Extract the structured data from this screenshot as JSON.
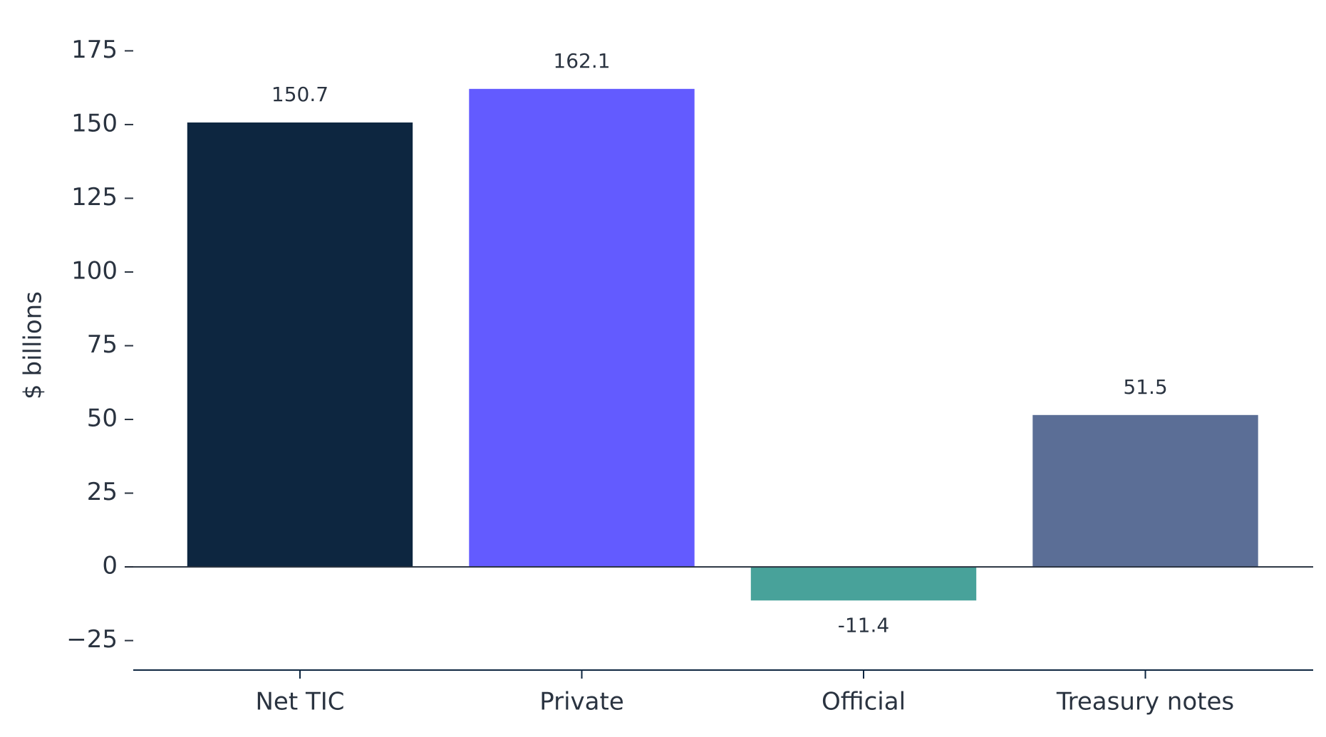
{
  "chart_data": {
    "type": "bar",
    "y_label": "$ billions",
    "categories": [
      "Net TIC",
      "Private",
      "Official",
      "Treasury notes"
    ],
    "values": [
      150.7,
      162.1,
      -11.4,
      51.5
    ],
    "colors": [
      "#0d2640",
      "#635bff",
      "#48a29a",
      "#5b6e96"
    ],
    "ylim": [
      -35,
      185
    ],
    "yticks": [
      {
        "value": -25,
        "label": "−25"
      },
      0,
      25,
      50,
      75,
      100,
      125,
      150,
      175
    ],
    "grid": false
  }
}
